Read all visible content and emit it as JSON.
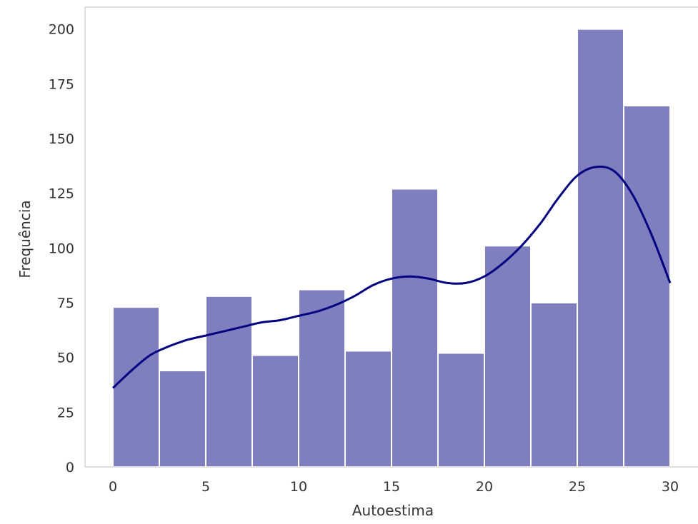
{
  "chart_data": {
    "type": "bar",
    "subtype": "histogram",
    "title": "",
    "xlabel": "Autoestima",
    "ylabel": "Frequência",
    "xlim": [
      -1.5,
      31.5
    ],
    "ylim": [
      0,
      210
    ],
    "xticks": [
      0,
      5,
      10,
      15,
      20,
      25,
      30
    ],
    "yticks": [
      0,
      25,
      50,
      75,
      100,
      125,
      150,
      175,
      200
    ],
    "grid": false,
    "bins": [
      {
        "x0": 0.0,
        "x1": 2.5,
        "count": 73
      },
      {
        "x0": 2.5,
        "x1": 5.0,
        "count": 44
      },
      {
        "x0": 5.0,
        "x1": 7.5,
        "count": 78
      },
      {
        "x0": 7.5,
        "x1": 10.0,
        "count": 51
      },
      {
        "x0": 10.0,
        "x1": 12.5,
        "count": 81
      },
      {
        "x0": 12.5,
        "x1": 15.0,
        "count": 53
      },
      {
        "x0": 15.0,
        "x1": 17.5,
        "count": 127
      },
      {
        "x0": 17.5,
        "x1": 20.0,
        "count": 52
      },
      {
        "x0": 20.0,
        "x1": 22.5,
        "count": 101
      },
      {
        "x0": 22.5,
        "x1": 25.0,
        "count": 75
      },
      {
        "x0": 25.0,
        "x1": 27.5,
        "count": 200
      },
      {
        "x0": 27.5,
        "x1": 30.0,
        "count": 165
      }
    ],
    "kde": {
      "x": [
        0,
        1,
        2,
        3,
        4,
        5,
        6,
        7,
        8,
        9,
        10,
        11,
        12,
        13,
        14,
        15,
        16,
        17,
        18,
        19,
        20,
        21,
        22,
        23,
        24,
        25,
        26,
        27,
        28,
        29,
        30
      ],
      "y": [
        36,
        44,
        51,
        55,
        58,
        60,
        62,
        64,
        66,
        67,
        69,
        71,
        74,
        78,
        83,
        86,
        87,
        86,
        84,
        84,
        87,
        93,
        101,
        111,
        123,
        133,
        137,
        135,
        124,
        106,
        84
      ]
    },
    "colors": {
      "bar": "#7f7fbf",
      "kde": "#000080"
    }
  }
}
